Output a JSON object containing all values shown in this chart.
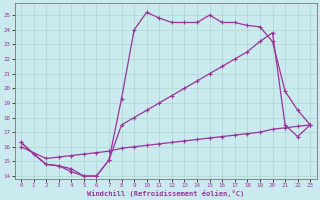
{
  "bg_color": "#caeaf0",
  "grid_color": "#aad8cc",
  "line_color": "#993399",
  "xlabel": "Windchill (Refroidissement éolien,°C)",
  "xlim": [
    -0.5,
    23.5
  ],
  "ylim": [
    13.8,
    25.8
  ],
  "xticks": [
    0,
    1,
    2,
    3,
    4,
    5,
    6,
    7,
    8,
    9,
    10,
    11,
    12,
    13,
    14,
    15,
    16,
    17,
    18,
    19,
    20,
    21,
    22,
    23
  ],
  "yticks": [
    14,
    15,
    16,
    17,
    18,
    19,
    20,
    21,
    22,
    23,
    24,
    25
  ],
  "curve1_x": [
    0,
    1,
    2,
    3,
    4,
    5,
    6,
    7,
    8,
    9,
    10,
    11,
    12,
    13,
    14,
    15,
    16,
    17,
    18,
    19,
    20,
    21,
    22,
    23
  ],
  "curve1_y": [
    16.3,
    15.5,
    14.8,
    14.7,
    14.5,
    14.0,
    14.0,
    15.1,
    19.3,
    24.0,
    25.2,
    24.8,
    24.5,
    24.5,
    24.5,
    25.0,
    24.5,
    24.5,
    24.3,
    24.2,
    23.2,
    19.8,
    18.5,
    17.5
  ],
  "curve2_x": [
    0,
    2,
    3,
    4,
    5,
    6,
    7,
    8,
    9,
    10,
    11,
    12,
    13,
    14,
    15,
    16,
    17,
    18,
    19,
    20,
    21,
    22,
    23
  ],
  "curve2_y": [
    16.3,
    14.8,
    14.7,
    14.3,
    14.0,
    14.0,
    15.1,
    17.5,
    18.0,
    18.5,
    19.0,
    19.5,
    20.0,
    20.5,
    21.0,
    21.5,
    22.0,
    22.5,
    23.2,
    23.8,
    17.5,
    16.7,
    17.5
  ],
  "curve3_x": [
    0,
    2,
    3,
    4,
    5,
    6,
    7,
    8,
    9,
    10,
    11,
    12,
    13,
    14,
    15,
    16,
    17,
    18,
    19,
    20,
    21,
    22,
    23
  ],
  "curve3_y": [
    16.0,
    15.2,
    15.3,
    15.4,
    15.5,
    15.6,
    15.7,
    15.9,
    16.0,
    16.1,
    16.2,
    16.3,
    16.4,
    16.5,
    16.6,
    16.7,
    16.8,
    16.9,
    17.0,
    17.2,
    17.3,
    17.4,
    17.5
  ]
}
